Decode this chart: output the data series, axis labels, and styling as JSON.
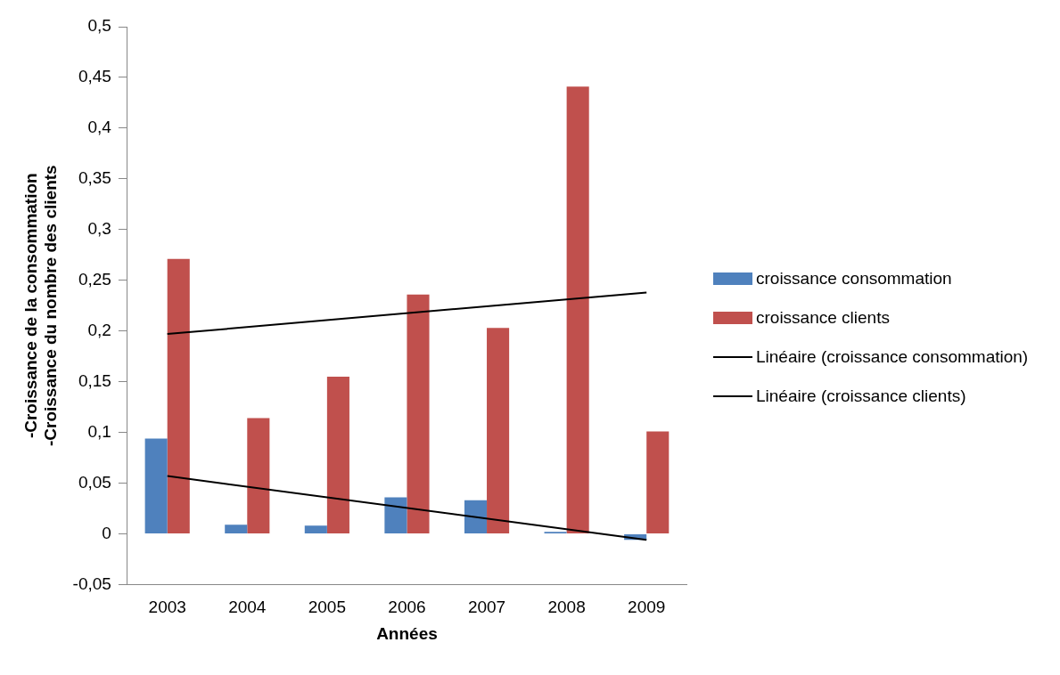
{
  "chart_data": {
    "type": "bar",
    "xlabel": "Années",
    "ylabel": "-Croissance de la consommation\n-Croissance du nombre des clients",
    "categories": [
      "2003",
      "2004",
      "2005",
      "2006",
      "2007",
      "2008",
      "2009"
    ],
    "series": [
      {
        "name": "croissance consommation",
        "color": "#4f81bd",
        "values": [
          0.094,
          0.009,
          0.008,
          0.036,
          0.033,
          0.002,
          -0.006
        ]
      },
      {
        "name": "croissance clients",
        "color": "#c0504d",
        "values": [
          0.271,
          0.114,
          0.155,
          0.236,
          0.203,
          0.441,
          0.101
        ]
      },
      {
        "name": "Linéaire (croissance consommation)",
        "type": "line",
        "color": "#000000",
        "values": [
          0.057,
          null,
          null,
          null,
          null,
          null,
          -0.006
        ]
      },
      {
        "name": "Linéaire (croissance clients)",
        "type": "line",
        "color": "#000000",
        "values": [
          0.197,
          null,
          null,
          null,
          null,
          null,
          0.238
        ]
      }
    ],
    "ylim": [
      -0.05,
      0.5
    ],
    "yticks": [
      {
        "value": -0.05,
        "label": "-0,05"
      },
      {
        "value": 0,
        "label": "0"
      },
      {
        "value": 0.05,
        "label": "0,05"
      },
      {
        "value": 0.1,
        "label": "0,1"
      },
      {
        "value": 0.15,
        "label": "0,15"
      },
      {
        "value": 0.2,
        "label": "0,2"
      },
      {
        "value": 0.25,
        "label": "0,25"
      },
      {
        "value": 0.3,
        "label": "0,3"
      },
      {
        "value": 0.35,
        "label": "0,35"
      },
      {
        "value": 0.4,
        "label": "0,4"
      },
      {
        "value": 0.45,
        "label": "0,45"
      },
      {
        "value": 0.5,
        "label": "0,5"
      }
    ],
    "grid": false,
    "legend": "right",
    "marker": "none"
  }
}
